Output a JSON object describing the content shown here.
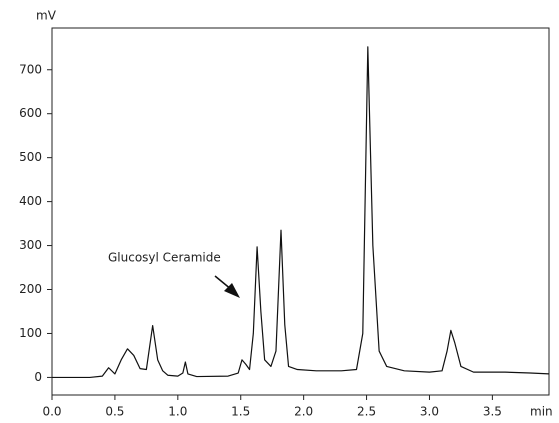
{
  "chart_data": {
    "type": "line",
    "y_label": "mV",
    "x_label": "min",
    "annotation": "Glucosyl Ceramide",
    "x": [
      0,
      0.3,
      0.4,
      0.45,
      0.5,
      0.55,
      0.6,
      0.65,
      0.7,
      0.75,
      0.8,
      0.84,
      0.88,
      0.92,
      1.0,
      1.04,
      1.06,
      1.08,
      1.15,
      1.4,
      1.48,
      1.51,
      1.54,
      1.57,
      1.6,
      1.63,
      1.66,
      1.69,
      1.74,
      1.78,
      1.82,
      1.85,
      1.88,
      1.95,
      2.1,
      2.3,
      2.42,
      2.47,
      2.51,
      2.55,
      2.6,
      2.66,
      2.8,
      3.0,
      3.1,
      3.14,
      3.17,
      3.2,
      3.25,
      3.35,
      3.6,
      3.8,
      3.95
    ],
    "values": [
      0,
      0,
      3,
      22,
      8,
      40,
      65,
      50,
      20,
      18,
      118,
      40,
      15,
      5,
      3,
      10,
      35,
      8,
      2,
      3,
      10,
      40,
      30,
      18,
      100,
      297,
      150,
      40,
      25,
      60,
      335,
      120,
      25,
      18,
      15,
      15,
      18,
      100,
      752,
      300,
      60,
      25,
      15,
      12,
      15,
      60,
      107,
      80,
      25,
      12,
      12,
      10,
      8
    ],
    "color": "#111111",
    "xlim": [
      0,
      3.95
    ],
    "ylim": [
      -40,
      795
    ],
    "xticks": [
      {
        "value": 0,
        "label": "0.0"
      },
      {
        "value": 0.5,
        "label": "0.5"
      },
      {
        "value": 1,
        "label": "1.0"
      },
      {
        "value": 1.5,
        "label": "1.5"
      },
      {
        "value": 2,
        "label": "2.0"
      },
      {
        "value": 2.5,
        "label": "2.5"
      },
      {
        "value": 3,
        "label": "3.0"
      },
      {
        "value": 3.5,
        "label": "3.5"
      }
    ],
    "yticks": [
      0,
      100,
      200,
      300,
      400,
      500,
      600,
      700
    ],
    "grid": false
  }
}
